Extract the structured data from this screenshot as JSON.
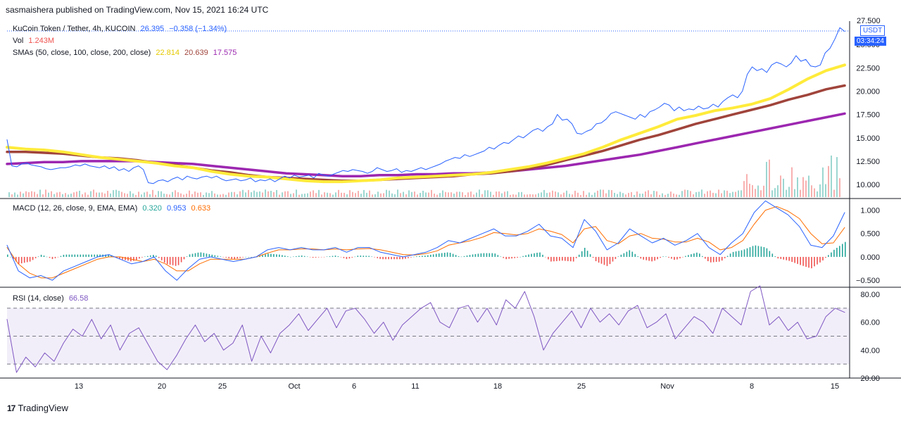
{
  "header": {
    "published": "sasmaishera published on TradingView.com, Nov 15, 2021 16:24 UTC"
  },
  "legend": {
    "symbol": "KuCoin Token / Tether, 4h, KUCOIN",
    "price": "26.395",
    "change": "−0.358 (−1.34%)",
    "vol_label": "Vol",
    "vol_value": "1.243M",
    "sma_label": "SMAs (50, close, 100, close, 200, close)",
    "sma50": "22.814",
    "sma100": "20.639",
    "sma200": "17.575",
    "macd_label": "MACD (12, 26, close, 9, EMA, EMA)",
    "macd_hist": "0.320",
    "macd_line": "0.953",
    "macd_signal": "0.633",
    "rsi_label": "RSI (14, close)",
    "rsi_value": "66.58"
  },
  "price_axis": {
    "currency": "USDT",
    "countdown": "03:34:24",
    "top_label": "27.500"
  },
  "colors": {
    "price": "#2962ff",
    "sma50": "#ffeb3b",
    "sma100": "#a0443b",
    "sma200": "#9c27b0",
    "macd": "#2962ff",
    "signal": "#ff6d00",
    "rsi": "#7e57c2",
    "hist_up": "#26a69a",
    "hist_down": "#ef5350"
  },
  "footer": {
    "brand": "TradingView"
  },
  "chart_data": [
    {
      "type": "line",
      "title": "KuCoin Token / Tether, 4h, KUCOIN",
      "x_ticks": [
        "13",
        "20",
        "25",
        "Oct",
        "6",
        "11",
        "18",
        "25",
        "Nov",
        "8",
        "15"
      ],
      "y_ticks": [
        "10.000",
        "12.500",
        "15.000",
        "17.500",
        "20.000",
        "22.500",
        "25.000"
      ],
      "ylim": [
        8.5,
        27.5
      ],
      "series": [
        {
          "name": "KuCoin Token / Tether",
          "values": [
            14.8,
            12.0,
            11.9,
            12.2,
            12.3,
            12.1,
            12.0,
            11.9,
            11.7,
            11.6,
            11.7,
            11.8,
            11.8,
            11.9,
            12.1,
            12.0,
            12.2,
            12.0,
            11.9,
            11.8,
            12.0,
            11.7,
            11.9,
            11.5,
            11.7,
            11.4,
            11.8,
            12.0,
            11.6,
            10.2,
            10.1,
            10.4,
            10.5,
            10.3,
            10.6,
            10.8,
            10.5,
            10.9,
            10.7,
            10.6,
            10.8,
            10.9,
            10.7,
            10.9,
            10.6,
            10.4,
            10.5,
            10.6,
            10.4,
            10.5,
            10.7,
            10.3,
            10.5,
            10.4,
            10.6,
            10.3,
            10.6,
            10.9,
            10.7,
            11.0,
            10.8,
            10.9,
            11.0,
            10.7,
            11.2,
            11.0,
            10.9,
            11.1,
            11.3,
            11.5,
            11.4,
            11.6,
            11.5,
            11.4,
            11.2,
            11.4,
            11.8,
            11.6,
            11.4,
            11.5,
            11.7,
            11.3,
            11.5,
            11.4,
            11.6,
            11.8,
            11.6,
            11.8,
            12.0,
            12.2,
            12.5,
            12.7,
            12.9,
            12.8,
            13.2,
            13.0,
            13.2,
            13.4,
            13.6,
            14.0,
            13.8,
            14.2,
            14.5,
            14.4,
            14.8,
            15.2,
            15.0,
            15.4,
            15.8,
            16.0,
            15.7,
            16.2,
            16.5,
            17.5,
            16.9,
            17.0,
            16.5,
            15.5,
            15.4,
            15.7,
            15.9,
            16.5,
            16.6,
            17.0,
            17.6,
            17.8,
            17.6,
            17.4,
            17.2,
            17.0,
            17.5,
            17.2,
            17.8,
            18.0,
            18.3,
            18.7,
            18.5,
            17.9,
            18.3,
            17.9,
            18.1,
            18.0,
            18.4,
            18.1,
            18.2,
            18.6,
            18.3,
            18.9,
            19.3,
            19.6,
            19.3,
            20.0,
            21.8,
            22.6,
            22.2,
            22.4,
            22.0,
            22.8,
            23.1,
            22.9,
            22.6,
            23.0,
            23.8,
            23.2,
            23.4,
            22.7,
            22.6,
            22.8,
            24.1,
            24.6,
            25.6,
            26.8,
            26.4
          ]
        },
        {
          "name": "SMA 50",
          "values": [
            14.0,
            13.8,
            13.7,
            13.5,
            13.2,
            12.9,
            12.7,
            12.5,
            12.3,
            12.0,
            11.8,
            11.4,
            11.1,
            10.9,
            10.8,
            10.6,
            10.4,
            10.3,
            10.3,
            10.4,
            10.5,
            10.7,
            10.8,
            10.9,
            11.0,
            11.1,
            11.3,
            11.6,
            11.9,
            12.3,
            12.8,
            13.3,
            14.0,
            14.8,
            15.5,
            16.2,
            17.0,
            17.4,
            17.9,
            18.2,
            18.6,
            19.2,
            20.2,
            21.3,
            22.2,
            22.8
          ]
        },
        {
          "name": "SMA 100",
          "values": [
            13.5,
            13.5,
            13.4,
            13.3,
            13.1,
            12.9,
            12.8,
            12.6,
            12.3,
            12.1,
            11.8,
            11.5,
            11.3,
            11.0,
            10.8,
            10.7,
            10.6,
            10.5,
            10.4,
            10.4,
            10.5,
            10.6,
            10.7,
            10.8,
            10.9,
            11.1,
            11.2,
            11.4,
            11.7,
            12.1,
            12.6,
            13.1,
            13.6,
            14.2,
            14.8,
            15.3,
            15.9,
            16.5,
            17.0,
            17.5,
            18.0,
            18.5,
            19.1,
            19.6,
            20.2,
            20.6
          ]
        },
        {
          "name": "SMA 200",
          "values": [
            12.2,
            12.3,
            12.4,
            12.4,
            12.5,
            12.5,
            12.5,
            12.5,
            12.4,
            12.3,
            12.2,
            12.0,
            11.8,
            11.6,
            11.4,
            11.2,
            11.1,
            11.0,
            10.9,
            10.9,
            11.0,
            11.0,
            11.1,
            11.1,
            11.2,
            11.2,
            11.3,
            11.4,
            11.6,
            11.8,
            12.0,
            12.3,
            12.6,
            12.9,
            13.2,
            13.6,
            14.0,
            14.4,
            14.8,
            15.2,
            15.6,
            16.0,
            16.4,
            16.8,
            17.2,
            17.6
          ]
        }
      ]
    },
    {
      "type": "line",
      "title": "MACD (12, 26, close, 9, EMA, EMA)",
      "y_ticks": [
        "−0.500",
        "0.000",
        "0.500",
        "1.000"
      ],
      "ylim": [
        -0.65,
        1.25
      ],
      "series": [
        {
          "name": "MACD",
          "values": [
            0.25,
            -0.3,
            -0.45,
            -0.4,
            -0.5,
            -0.3,
            -0.2,
            -0.1,
            0.0,
            0.05,
            -0.05,
            -0.15,
            -0.1,
            0.0,
            -0.3,
            -0.5,
            -0.25,
            -0.05,
            0.0,
            -0.05,
            -0.1,
            -0.05,
            0.0,
            0.15,
            0.2,
            0.15,
            0.2,
            0.15,
            0.15,
            0.2,
            0.1,
            0.2,
            0.2,
            0.1,
            0.05,
            0.0,
            0.05,
            0.1,
            0.2,
            0.35,
            0.3,
            0.4,
            0.5,
            0.6,
            0.45,
            0.45,
            0.55,
            0.7,
            0.45,
            0.4,
            0.2,
            0.8,
            0.55,
            0.15,
            0.3,
            0.6,
            0.45,
            0.3,
            0.4,
            0.25,
            0.35,
            0.5,
            0.2,
            0.05,
            0.3,
            0.5,
            0.95,
            1.2,
            1.05,
            0.9,
            0.65,
            0.25,
            0.2,
            0.45,
            0.95
          ]
        },
        {
          "name": "Signal",
          "values": [
            0.2,
            -0.15,
            -0.35,
            -0.45,
            -0.45,
            -0.35,
            -0.25,
            -0.15,
            -0.05,
            0.0,
            0.0,
            -0.05,
            -0.1,
            -0.05,
            -0.15,
            -0.3,
            -0.3,
            -0.15,
            -0.05,
            -0.05,
            -0.05,
            -0.05,
            0.0,
            0.08,
            0.15,
            0.15,
            0.17,
            0.17,
            0.15,
            0.17,
            0.15,
            0.17,
            0.18,
            0.15,
            0.1,
            0.05,
            0.04,
            0.07,
            0.13,
            0.25,
            0.3,
            0.35,
            0.42,
            0.52,
            0.5,
            0.47,
            0.5,
            0.6,
            0.55,
            0.48,
            0.3,
            0.6,
            0.65,
            0.35,
            0.28,
            0.45,
            0.5,
            0.4,
            0.38,
            0.32,
            0.32,
            0.4,
            0.32,
            0.15,
            0.2,
            0.35,
            0.7,
            1.0,
            1.08,
            0.98,
            0.82,
            0.5,
            0.28,
            0.3,
            0.63
          ]
        }
      ]
    },
    {
      "type": "line",
      "title": "RSI (14, close)",
      "y_ticks": [
        "20.00",
        "40.00",
        "60.00",
        "80.00"
      ],
      "ylim": [
        20,
        85
      ],
      "bands": [
        30,
        50,
        70
      ],
      "series": [
        {
          "name": "RSI",
          "values": [
            62,
            24,
            35,
            28,
            38,
            32,
            45,
            55,
            50,
            62,
            48,
            58,
            40,
            52,
            56,
            44,
            32,
            26,
            36,
            48,
            58,
            46,
            52,
            40,
            45,
            58,
            32,
            50,
            38,
            52,
            58,
            66,
            54,
            62,
            70,
            56,
            68,
            70,
            62,
            52,
            60,
            47,
            58,
            64,
            70,
            74,
            60,
            56,
            70,
            72,
            60,
            70,
            58,
            76,
            70,
            82,
            64,
            40,
            52,
            60,
            68,
            56,
            70,
            60,
            66,
            58,
            68,
            72,
            56,
            60,
            66,
            48,
            56,
            64,
            60,
            52,
            70,
            64,
            58,
            82,
            86,
            58,
            64,
            54,
            60,
            48,
            50,
            64,
            70,
            67
          ]
        }
      ]
    }
  ]
}
